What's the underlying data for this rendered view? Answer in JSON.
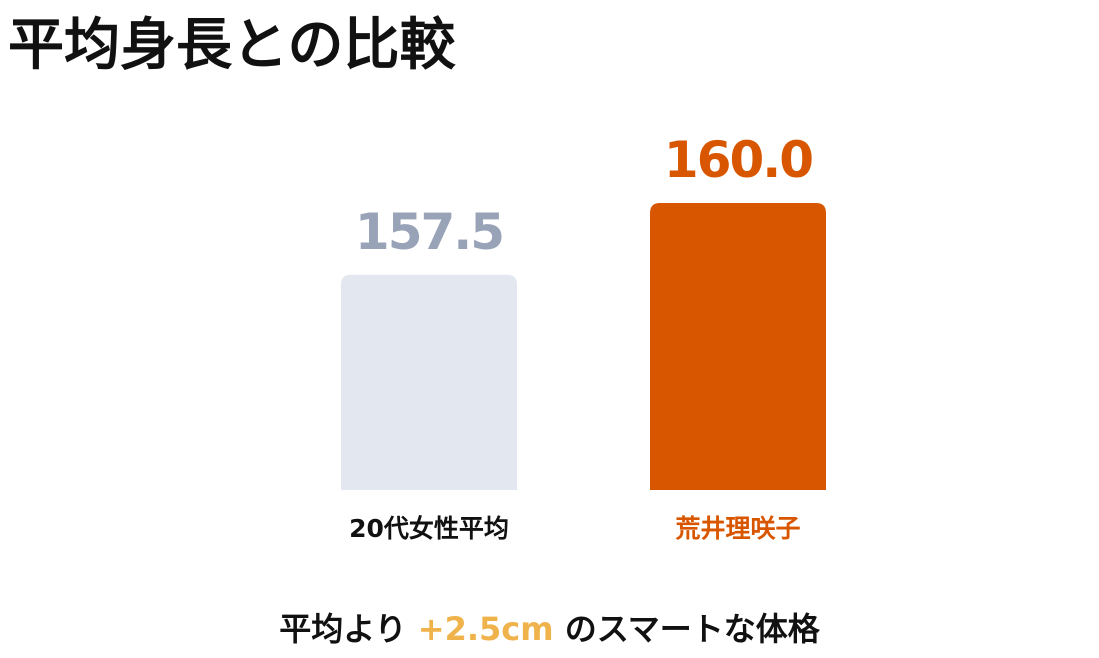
{
  "page": {
    "title": "平均身長との比較"
  },
  "chart_data": {
    "type": "bar",
    "categories": [
      "20代女性平均",
      "荒井理咲子"
    ],
    "values": [
      157.5,
      160.0
    ],
    "value_labels": [
      "157.5",
      "160.0"
    ],
    "bar_colors": [
      "#e2e7f0",
      "#d95600"
    ],
    "value_colors": [
      "#98a3b8",
      "#d95600"
    ],
    "category_label_colors": [
      "#111111",
      "#d95600"
    ],
    "ylim": [
      150,
      161.5
    ],
    "axes_visible": false,
    "grid": false
  },
  "footer": {
    "prefix": "平均より ",
    "highlight": "+2.5cm",
    "suffix": " のスマートな体格",
    "highlight_color": "#f0b24a"
  }
}
